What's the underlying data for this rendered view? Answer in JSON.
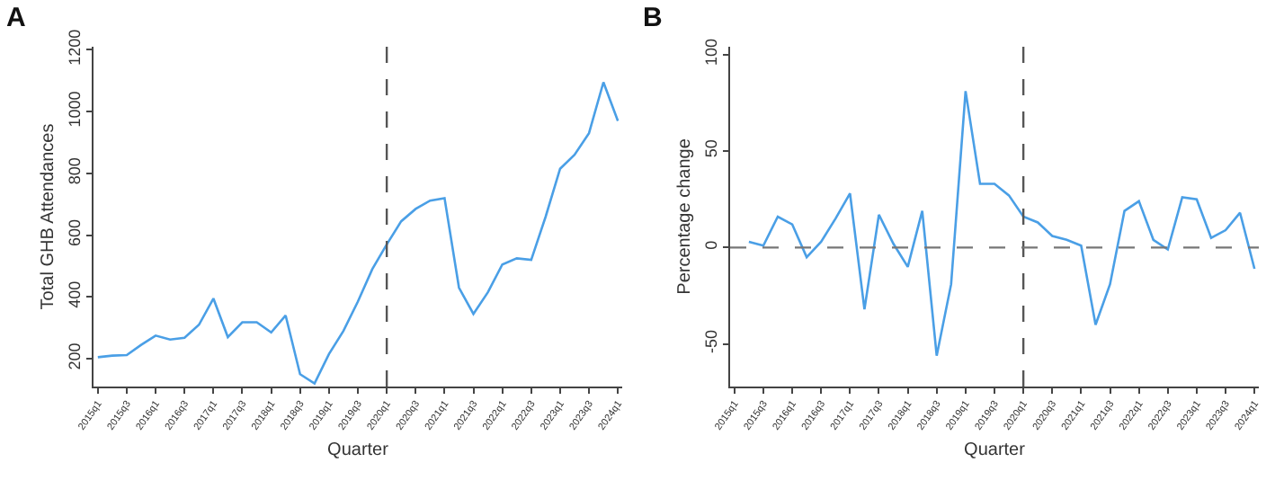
{
  "chart_data": [
    {
      "type": "line",
      "title": "A",
      "xlabel": "Quarter",
      "ylabel": "Total GHB Attendances",
      "categories": [
        "2015q1",
        null,
        "2015q3",
        null,
        "2016q1",
        null,
        "2016q3",
        null,
        "2017q1",
        null,
        "2017q3",
        null,
        "2018q1",
        null,
        "2018q3",
        null,
        "2019q1",
        null,
        "2019q3",
        null,
        "2020q1",
        null,
        "2020q3",
        null,
        "2021q1",
        null,
        "2021q3",
        null,
        "2022q1",
        null,
        "2022q3",
        null,
        "2023q1",
        null,
        "2023q3",
        null,
        "2024q1"
      ],
      "series": [
        {
          "color": "#4a9fe6",
          "values": [
            205,
            210,
            212,
            245,
            275,
            262,
            268,
            310,
            395,
            270,
            318,
            318,
            285,
            340,
            150,
            120,
            215,
            290,
            385,
            490,
            570,
            645,
            685,
            712,
            720,
            430,
            345,
            415,
            505,
            525,
            520,
            660,
            815,
            860,
            930,
            1095,
            970
          ]
        }
      ],
      "ylim": [
        110,
        1210
      ],
      "yticks": [
        200,
        400,
        600,
        800,
        1000,
        1200
      ],
      "grid": false,
      "marker": "none",
      "line_style": "solid",
      "ref_lines": [
        {
          "axis": "x",
          "value": "2020q1",
          "color": "#555555",
          "line_style": "dashed"
        }
      ]
    },
    {
      "type": "line",
      "title": "B",
      "xlabel": "Quarter",
      "ylabel": "Percentage change",
      "categories": [
        "2015q1",
        null,
        "2015q3",
        null,
        "2016q1",
        null,
        "2016q3",
        null,
        "2017q1",
        null,
        "2017q3",
        null,
        "2018q1",
        null,
        "2018q3",
        null,
        "2019q1",
        null,
        "2019q3",
        null,
        "2020q1",
        null,
        "2020q3",
        null,
        "2021q1",
        null,
        "2021q3",
        null,
        "2022q1",
        null,
        "2022q3",
        null,
        "2023q1",
        null,
        "2023q3",
        null,
        "2024q1"
      ],
      "series": [
        {
          "color": "#4a9fe6",
          "values": [
            null,
            3,
            1,
            16,
            12,
            -5,
            3,
            15,
            28,
            -32,
            17,
            2,
            -10,
            19,
            -56,
            -19,
            81,
            33,
            33,
            27,
            16,
            13,
            6,
            4,
            1,
            -40,
            -19,
            19,
            24,
            4,
            -1,
            26,
            25,
            5,
            9,
            18,
            -11
          ]
        }
      ],
      "ylim": [
        -72,
        104
      ],
      "yticks": [
        -50,
        0,
        50,
        100
      ],
      "grid": false,
      "marker": "none",
      "line_style": "solid",
      "ref_lines": [
        {
          "axis": "x",
          "value": "2020q1",
          "color": "#555555",
          "line_style": "dashed"
        },
        {
          "axis": "y",
          "value": 0,
          "color": "#777777",
          "line_style": "dashed"
        }
      ]
    }
  ]
}
